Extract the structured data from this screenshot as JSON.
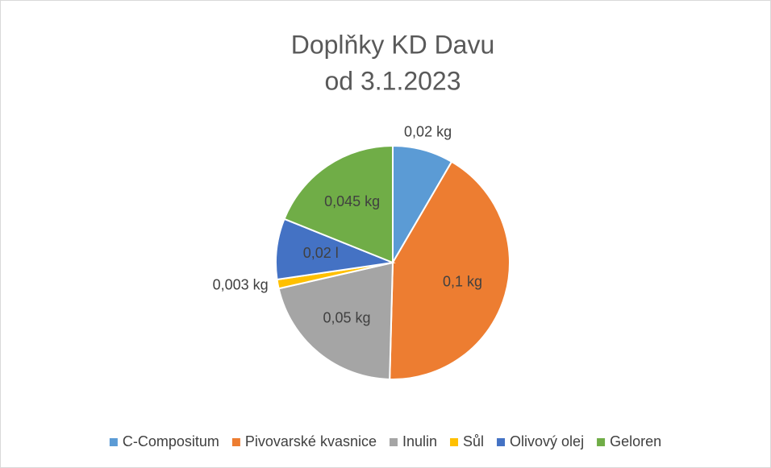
{
  "chart_data": {
    "type": "pie",
    "title": [
      "Doplňky KD Davu",
      "od 3.1.2023"
    ],
    "categories": [
      "C-Compositum",
      "Pivovarské kvasnice",
      "Inulin",
      "Sůl",
      "Olivový olej",
      "Geloren"
    ],
    "values": [
      0.02,
      0.1,
      0.05,
      0.003,
      0.02,
      0.045
    ],
    "value_labels": [
      "0,02 kg",
      "0,1 kg",
      "0,05 kg",
      "0,003 kg",
      "0,02 l",
      "0,045 kg"
    ],
    "colors": [
      "#5b9bd5",
      "#ed7d31",
      "#a5a5a5",
      "#ffc000",
      "#4472c4",
      "#70ad47"
    ],
    "legend": "bottom"
  }
}
